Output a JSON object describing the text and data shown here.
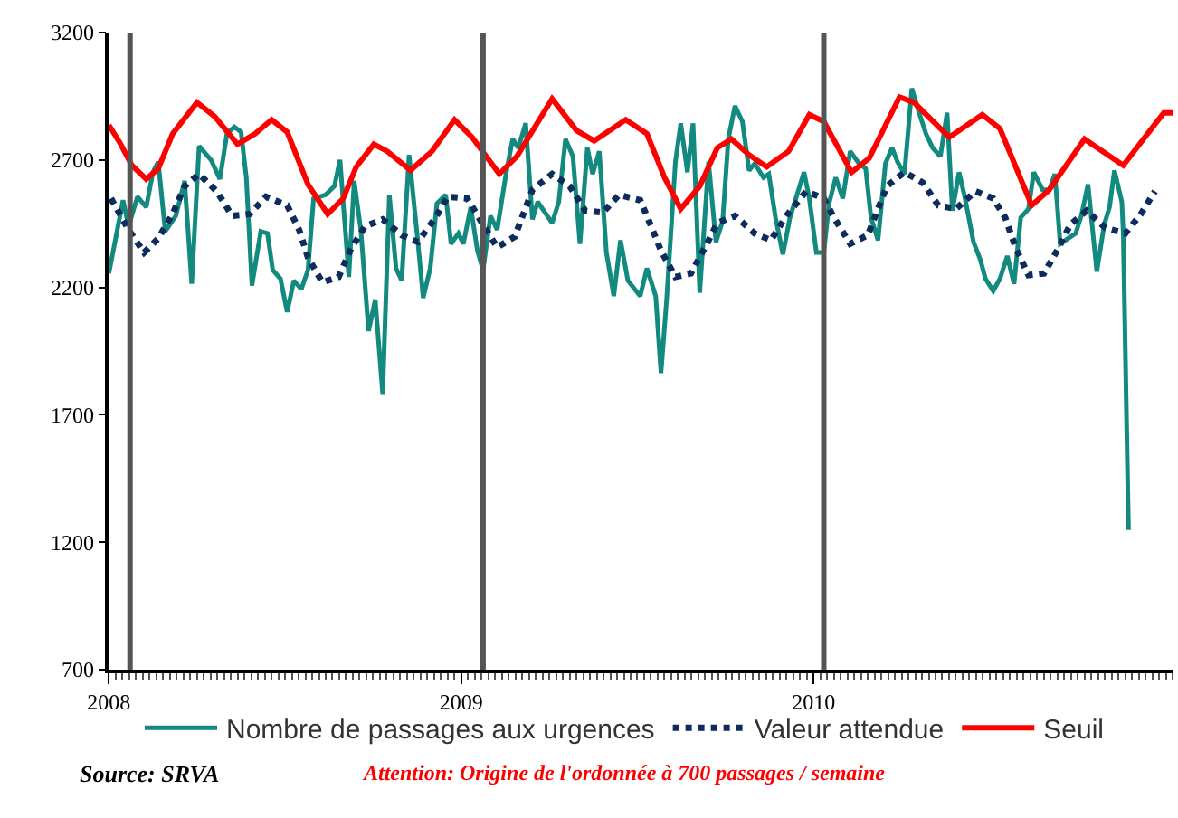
{
  "chart_data": {
    "type": "line",
    "xlim": [
      2008,
      2011.019
    ],
    "xticks": [
      2008,
      2009,
      2010
    ],
    "ylim": [
      700,
      3200
    ],
    "yticks": [
      700,
      1200,
      1700,
      2200,
      2700,
      3200
    ],
    "legend": "bottom",
    "ref_lines": [
      {
        "axis": "x",
        "value": 2008.06,
        "label": null,
        "color": "#555555"
      },
      {
        "axis": "x",
        "value": 2009.062,
        "label": null,
        "color": "#555555"
      },
      {
        "axis": "x",
        "value": 2010.029,
        "label": null,
        "color": "#555555"
      }
    ],
    "annotations": [
      "Source: SRVA",
      "Attention: Origine de l'ordonnée à 700 passages / semaine"
    ],
    "series": [
      {
        "name": "Nombre de passages aux urgences",
        "color": "#138a80",
        "line_style": "solid",
        "x": [
          2008.0,
          2008.04,
          2008.056,
          2008.081,
          2008.106,
          2008.125,
          2008.14,
          2008.16,
          2008.19,
          2008.215,
          2008.235,
          2008.256,
          2008.29,
          2008.315,
          2008.335,
          2008.356,
          2008.375,
          2008.39,
          2008.406,
          2008.431,
          2008.45,
          2008.465,
          2008.487,
          2008.506,
          2008.525,
          2008.546,
          2008.565,
          2008.581,
          2008.615,
          2008.64,
          2008.656,
          2008.681,
          2008.696,
          2008.715,
          2008.737,
          2008.756,
          2008.777,
          2008.796,
          2008.815,
          2008.831,
          2008.852,
          2008.877,
          2008.892,
          2008.912,
          2008.931,
          2008.956,
          2008.971,
          2008.992,
          2009.006,
          2009.027,
          2009.046,
          2009.062,
          2009.083,
          2009.102,
          2009.127,
          2009.146,
          2009.162,
          2009.183,
          2009.202,
          2009.217,
          2009.258,
          2009.277,
          2009.296,
          2009.317,
          2009.337,
          2009.358,
          2009.373,
          2009.392,
          2009.412,
          2009.433,
          2009.452,
          2009.473,
          2009.508,
          2009.527,
          2009.552,
          2009.567,
          2009.583,
          2009.608,
          2009.623,
          2009.642,
          2009.658,
          2009.677,
          2009.702,
          2009.723,
          2009.742,
          2009.758,
          2009.777,
          2009.798,
          2009.817,
          2009.833,
          2009.858,
          2009.873,
          2009.892,
          2009.913,
          2009.933,
          2009.973,
          2009.988,
          2010.008,
          2010.029,
          2010.044,
          2010.063,
          2010.083,
          2010.104,
          2010.129,
          2010.148,
          2010.163,
          2010.183,
          2010.204,
          2010.223,
          2010.238,
          2010.258,
          2010.279,
          2010.298,
          2010.319,
          2010.338,
          2010.36,
          2010.379,
          2010.394,
          2010.413,
          2010.429,
          2010.454,
          2010.473,
          2010.488,
          2010.51,
          2010.529,
          2010.55,
          2010.569,
          2010.588,
          2010.61,
          2010.625,
          2010.65,
          2010.669,
          2010.685,
          2010.7,
          2010.744,
          2010.76,
          2010.779,
          2010.804,
          2010.825,
          2010.84,
          2010.854,
          2010.875,
          2010.879,
          2010.894
        ],
        "values": [
          2255,
          2542,
          2440,
          2556,
          2515,
          2652,
          2693,
          2420,
          2481,
          2618,
          2214,
          2755,
          2700,
          2625,
          2803,
          2830,
          2810,
          2631,
          2207,
          2420,
          2412,
          2268,
          2234,
          2104,
          2227,
          2193,
          2268,
          2549,
          2563,
          2597,
          2700,
          2241,
          2618,
          2426,
          2029,
          2152,
          1782,
          2563,
          2275,
          2227,
          2720,
          2378,
          2159,
          2275,
          2529,
          2563,
          2371,
          2412,
          2371,
          2515,
          2344,
          2268,
          2481,
          2426,
          2645,
          2782,
          2748,
          2844,
          2467,
          2536,
          2453,
          2536,
          2782,
          2714,
          2371,
          2748,
          2645,
          2734,
          2337,
          2166,
          2385,
          2227,
          2166,
          2275,
          2166,
          1864,
          2152,
          2693,
          2844,
          2652,
          2844,
          2179,
          2693,
          2378,
          2460,
          2782,
          2912,
          2851,
          2659,
          2686,
          2631,
          2645,
          2474,
          2330,
          2474,
          2652,
          2549,
          2337,
          2337,
          2529,
          2631,
          2549,
          2734,
          2686,
          2666,
          2474,
          2385,
          2686,
          2748,
          2693,
          2645,
          2981,
          2892,
          2803,
          2748,
          2714,
          2885,
          2501,
          2652,
          2556,
          2378,
          2310,
          2234,
          2186,
          2234,
          2323,
          2214,
          2474,
          2508,
          2652,
          2583,
          2583,
          2645,
          2371,
          2412,
          2481,
          2604,
          2262,
          2447,
          2515,
          2659,
          2536,
          2412,
          1248
        ]
      },
      {
        "name": "Valeur attendue",
        "color": "#0d2c5c",
        "line_style": "dotted",
        "x": [
          2008.006,
          2008.056,
          2008.1,
          2008.14,
          2008.181,
          2008.215,
          2008.256,
          2008.306,
          2008.35,
          2008.4,
          2008.446,
          2008.506,
          2008.54,
          2008.565,
          2008.606,
          2008.652,
          2008.687,
          2008.727,
          2008.777,
          2008.831,
          2008.877,
          2008.927,
          2008.962,
          2009.017,
          2009.056,
          2009.102,
          2009.152,
          2009.202,
          2009.258,
          2009.308,
          2009.352,
          2009.402,
          2009.448,
          2009.508,
          2009.537,
          2009.567,
          2009.608,
          2009.652,
          2009.692,
          2009.727,
          2009.777,
          2009.833,
          2009.879,
          2009.923,
          2009.979,
          2010.029,
          2010.058,
          2010.104,
          2010.154,
          2010.208,
          2010.258,
          2010.31,
          2010.354,
          2010.404,
          2010.46,
          2010.51,
          2010.544,
          2010.575,
          2010.61,
          2010.654,
          2010.694,
          2010.729,
          2010.775,
          2010.829,
          2010.885,
          2010.929,
          2010.969
        ],
        "values": [
          2549,
          2426,
          2337,
          2392,
          2488,
          2597,
          2645,
          2577,
          2481,
          2488,
          2556,
          2522,
          2426,
          2317,
          2220,
          2241,
          2351,
          2440,
          2467,
          2405,
          2378,
          2474,
          2556,
          2549,
          2460,
          2357,
          2399,
          2583,
          2645,
          2597,
          2501,
          2494,
          2563,
          2542,
          2447,
          2344,
          2241,
          2255,
          2357,
          2453,
          2481,
          2412,
          2385,
          2481,
          2577,
          2549,
          2474,
          2371,
          2405,
          2597,
          2652,
          2611,
          2522,
          2508,
          2577,
          2549,
          2474,
          2351,
          2248,
          2255,
          2351,
          2447,
          2501,
          2433,
          2412,
          2488,
          2577
        ]
      },
      {
        "name": "Seuil",
        "color": "#ff0000",
        "line_style": "solid",
        "x": [
          2008.0,
          2008.031,
          2008.065,
          2008.106,
          2008.14,
          2008.181,
          2008.25,
          2008.3,
          2008.365,
          2008.415,
          2008.462,
          2008.506,
          2008.565,
          2008.621,
          2008.665,
          2008.702,
          2008.752,
          2008.79,
          2008.856,
          2008.917,
          2008.981,
          2009.031,
          2009.108,
          2009.158,
          2009.258,
          2009.327,
          2009.377,
          2009.467,
          2009.527,
          2009.577,
          2009.623,
          2009.677,
          2009.727,
          2009.767,
          2009.817,
          2009.867,
          2009.929,
          2009.988,
          2010.029,
          2010.108,
          2010.158,
          2010.244,
          2010.285,
          2010.385,
          2010.479,
          2010.529,
          2010.619,
          2010.669,
          2010.769,
          2010.879,
          2010.994,
          2011.019
        ],
        "values": [
          2837,
          2768,
          2679,
          2625,
          2666,
          2803,
          2926,
          2871,
          2762,
          2803,
          2858,
          2810,
          2604,
          2488,
          2549,
          2673,
          2762,
          2734,
          2659,
          2734,
          2858,
          2789,
          2645,
          2714,
          2940,
          2816,
          2775,
          2858,
          2803,
          2631,
          2508,
          2597,
          2748,
          2782,
          2720,
          2673,
          2734,
          2878,
          2851,
          2652,
          2707,
          2947,
          2926,
          2789,
          2878,
          2823,
          2522,
          2583,
          2782,
          2679,
          2885,
          2885
        ]
      }
    ]
  }
}
